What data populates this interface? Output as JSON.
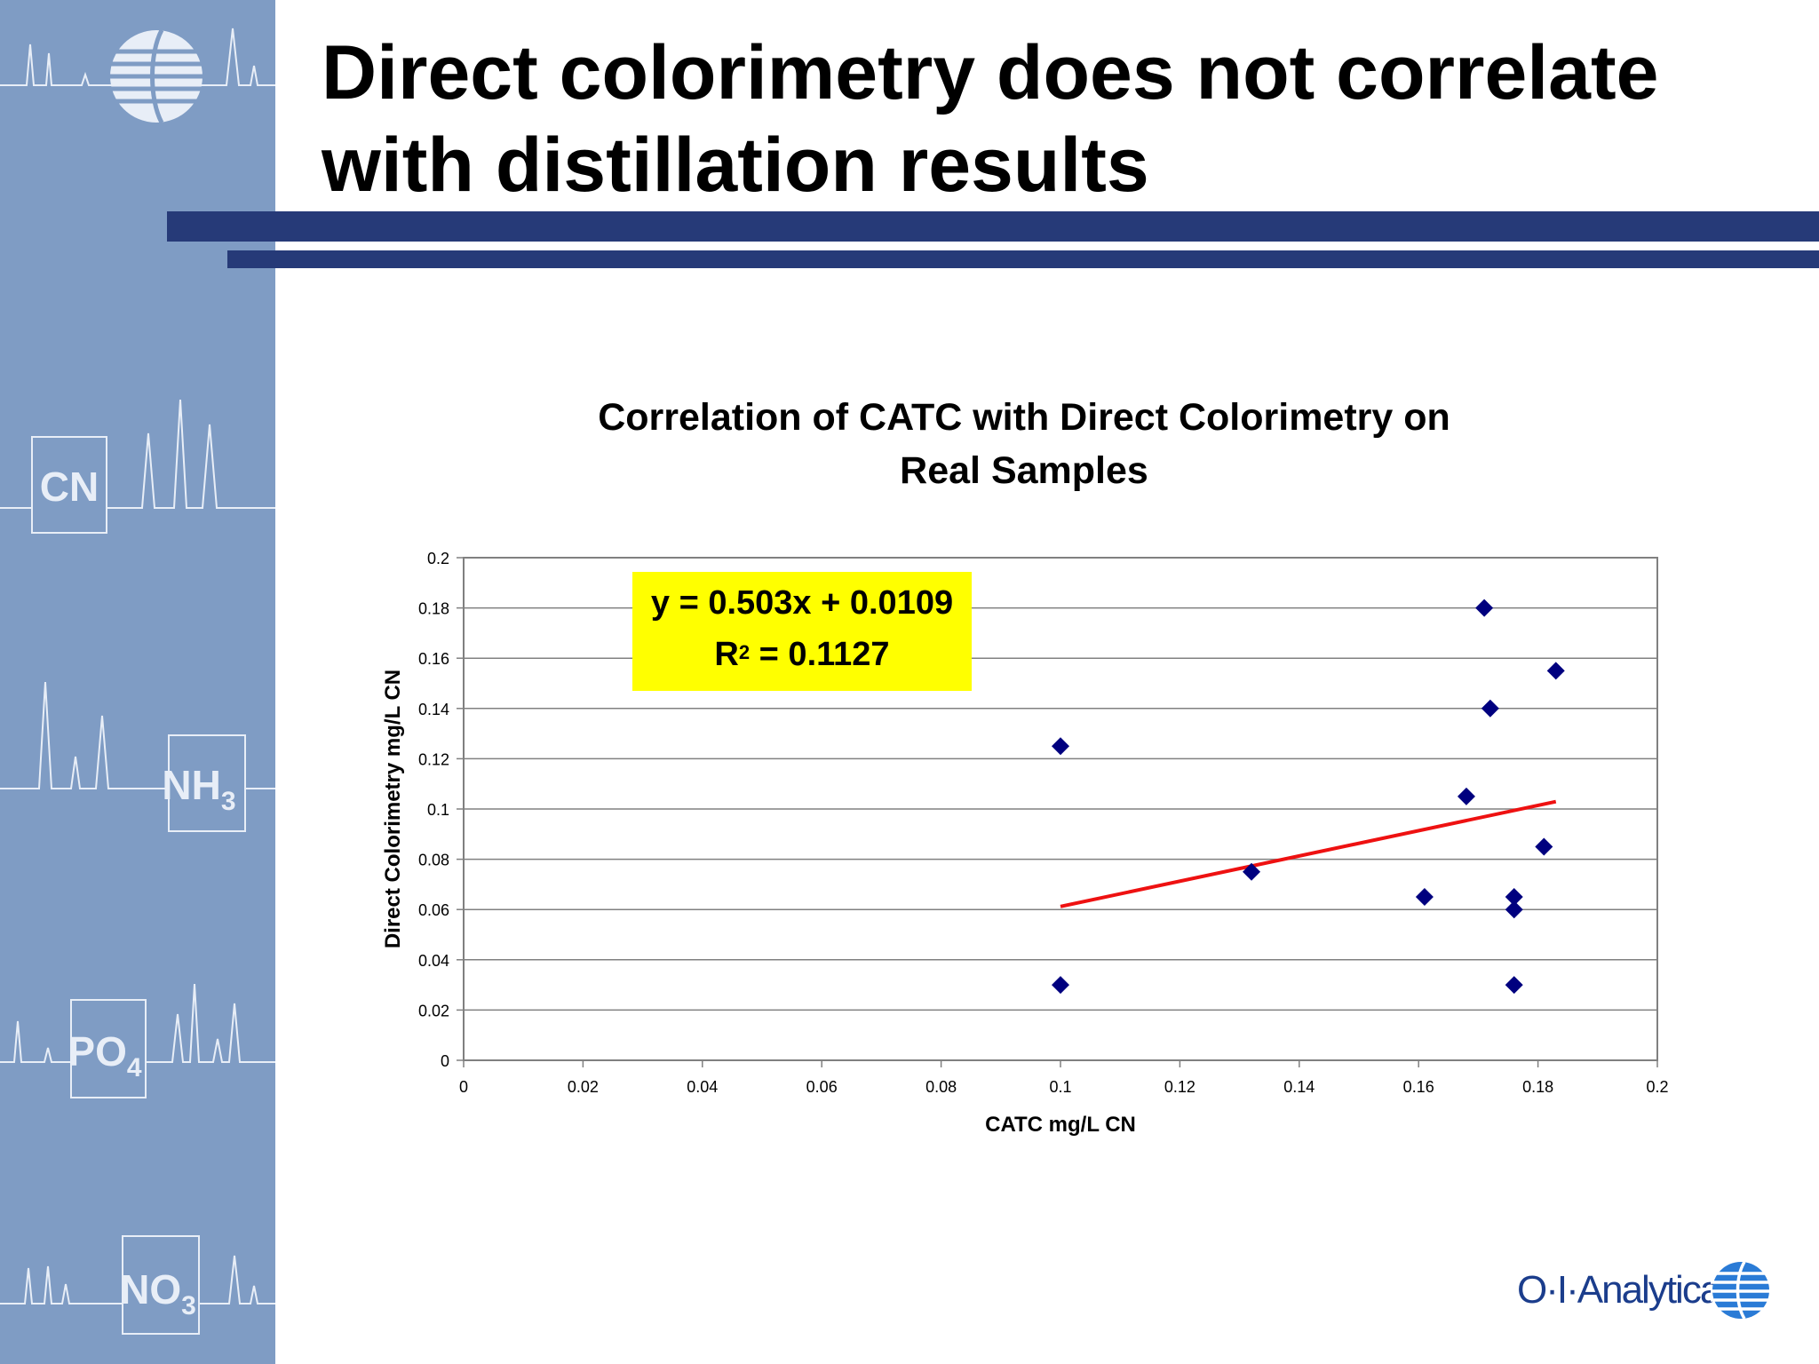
{
  "slide": {
    "title_line1": "Direct colorimetry does not correlate",
    "title_line2": "with distillation results",
    "accent_color": "#263a78",
    "sidebar_color": "#7f9cc4",
    "sidebar_labels": {
      "cn": "CN",
      "nh": "NH",
      "nh_sub": "3",
      "po": "PO",
      "po_sub": "4",
      "no": "NO",
      "no_sub": "3"
    },
    "sidebar_logo_icon": "globe-logo-icon",
    "logo_text": "O·I·Analytical",
    "logo_icon": "globe-logo-icon"
  },
  "chart_data": {
    "type": "scatter",
    "title_line1": "Correlation of CATC with Direct Colorimetry on",
    "title_line2": "Real Samples",
    "xlabel": "CATC mg/L CN",
    "ylabel": "Direct Colorimetry mg/L CN",
    "xlim": [
      0,
      0.2
    ],
    "ylim": [
      0,
      0.2
    ],
    "x_ticks": [
      "0",
      "0.02",
      "0.04",
      "0.06",
      "0.08",
      "0.1",
      "0.12",
      "0.14",
      "0.16",
      "0.18",
      "0.2"
    ],
    "y_ticks": [
      "0",
      "0.02",
      "0.04",
      "0.06",
      "0.08",
      "0.1",
      "0.12",
      "0.14",
      "0.16",
      "0.18",
      "0.2"
    ],
    "grid": "horizontal",
    "marker_color": "#00007f",
    "trendline_color": "#ee1111",
    "points": [
      {
        "x": 0.1,
        "y": 0.125
      },
      {
        "x": 0.1,
        "y": 0.03
      },
      {
        "x": 0.132,
        "y": 0.075
      },
      {
        "x": 0.161,
        "y": 0.065
      },
      {
        "x": 0.168,
        "y": 0.105
      },
      {
        "x": 0.171,
        "y": 0.18
      },
      {
        "x": 0.172,
        "y": 0.14
      },
      {
        "x": 0.176,
        "y": 0.065
      },
      {
        "x": 0.176,
        "y": 0.06
      },
      {
        "x": 0.176,
        "y": 0.03
      },
      {
        "x": 0.181,
        "y": 0.085
      },
      {
        "x": 0.183,
        "y": 0.155
      }
    ],
    "trendline": {
      "slope": 0.503,
      "intercept": 0.0109,
      "x_start": 0.1,
      "x_end": 0.183
    },
    "equation_text": "y = 0.503x + 0.0109",
    "r2_prefix": "R",
    "r2_sup": "2",
    "r2_suffix": " = 0.1127",
    "annotation_bg": "#ffff00"
  }
}
